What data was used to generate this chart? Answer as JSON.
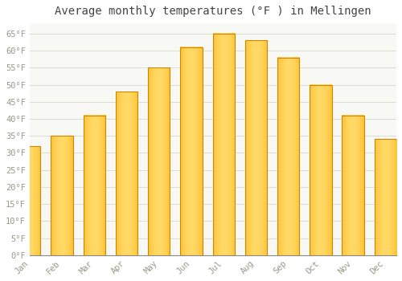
{
  "title": "Average monthly temperatures (°F ) in Mellingen",
  "months": [
    "Jan",
    "Feb",
    "Mar",
    "Apr",
    "May",
    "Jun",
    "Jul",
    "Aug",
    "Sep",
    "Oct",
    "Nov",
    "Dec"
  ],
  "values": [
    32,
    35,
    41,
    48,
    55,
    61,
    65,
    63,
    58,
    50,
    41,
    34
  ],
  "bar_color_face": "#FFAA00",
  "bar_color_edge": "#CC8800",
  "bar_gradient_center": "#FFD966",
  "ylim": [
    0,
    68
  ],
  "yticks": [
    0,
    5,
    10,
    15,
    20,
    25,
    30,
    35,
    40,
    45,
    50,
    55,
    60,
    65
  ],
  "ytick_labels": [
    "0°F",
    "5°F",
    "10°F",
    "15°F",
    "20°F",
    "25°F",
    "30°F",
    "35°F",
    "40°F",
    "45°F",
    "50°F",
    "55°F",
    "60°F",
    "65°F"
  ],
  "background_color": "#ffffff",
  "plot_bg_color": "#f8f8f4",
  "grid_color": "#ddddcc",
  "title_fontsize": 10,
  "tick_fontsize": 7.5,
  "bar_edge_color": "#cc8800",
  "font_color": "#999988",
  "title_color": "#444444"
}
